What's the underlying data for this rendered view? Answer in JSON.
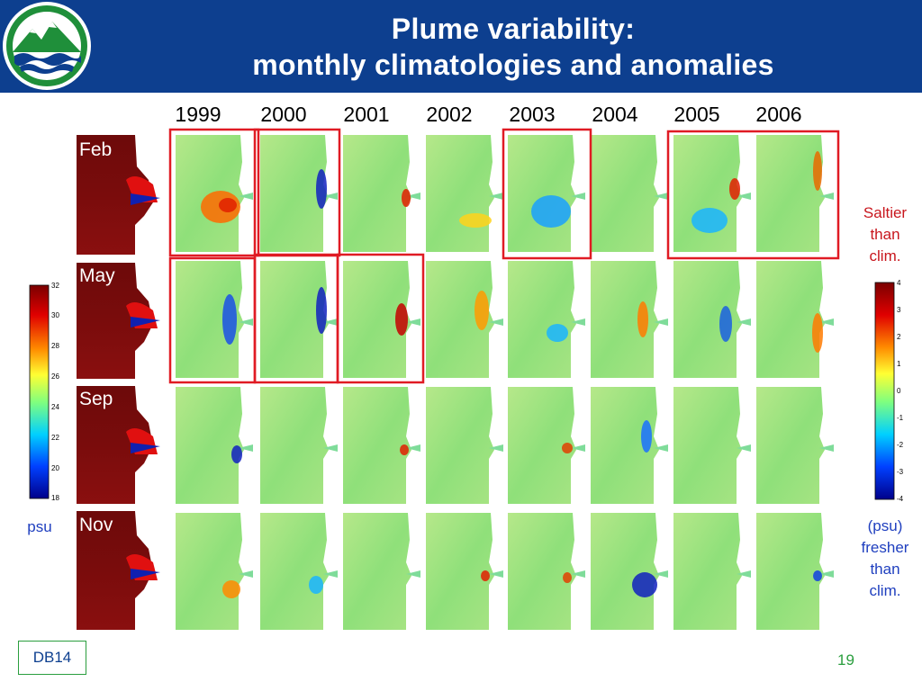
{
  "slide": {
    "title_line1": "Plume variability:",
    "title_line2": "monthly climatologies and anomalies",
    "footer_label": "DB14",
    "page_number": "19"
  },
  "years": [
    "1999",
    "2000",
    "2001",
    "2002",
    "2003",
    "2004",
    "2005",
    "2006"
  ],
  "months": [
    "Feb",
    "May",
    "Sep",
    "Nov"
  ],
  "left_colorbar": {
    "ticks": [
      "32",
      "30",
      "28",
      "26",
      "24",
      "22",
      "20",
      "18"
    ],
    "unit": "psu"
  },
  "right_colorbar": {
    "ticks": [
      "4",
      "3",
      "2",
      "1",
      "0",
      "-1",
      "-2",
      "-3",
      "-4"
    ],
    "label_top": [
      "Saltier",
      "than",
      "clim."
    ],
    "label_bottom": [
      "(psu)",
      "fresher",
      "than",
      "clim."
    ]
  },
  "colors": {
    "header": "#0d3f8f",
    "highlight_box": "#e01b24",
    "saltier_text": "#c8161d",
    "fresher_text": "#1f3fbf",
    "accent_green": "#2a9e3e"
  }
}
